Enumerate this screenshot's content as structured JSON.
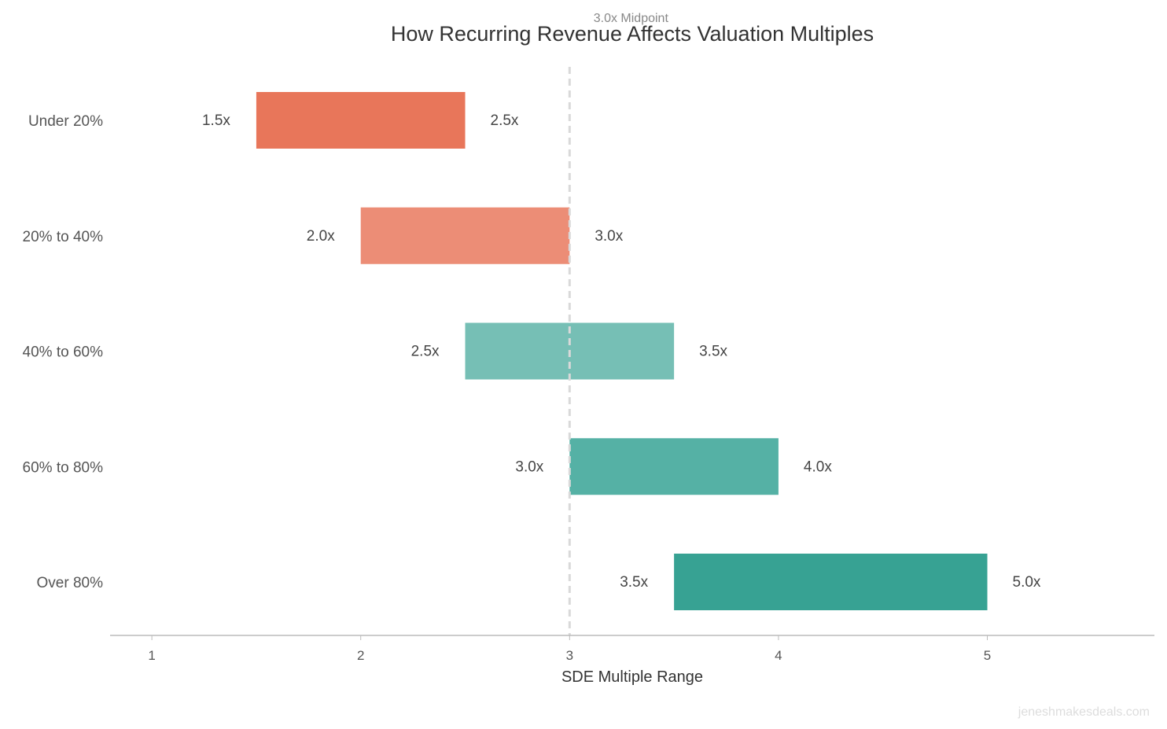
{
  "chart_data": {
    "type": "bar",
    "orientation": "horizontal-range",
    "title": "How Recurring Revenue Affects Valuation Multiples",
    "xlabel": "SDE Multiple Range",
    "ylabel": "",
    "xlim": [
      0.8,
      5.8
    ],
    "xticks": [
      "1",
      "2",
      "3",
      "4",
      "5"
    ],
    "grid": false,
    "categories": [
      "Under 20%",
      "20% to 40%",
      "40% to 60%",
      "60% to 80%",
      "Over 80%"
    ],
    "low": [
      1.5,
      2.0,
      2.5,
      3.0,
      3.5
    ],
    "high": [
      2.5,
      3.0,
      3.5,
      4.0,
      5.0
    ],
    "low_labels": [
      "1.5x",
      "2.0x",
      "2.5x",
      "3.0x",
      "3.5x"
    ],
    "high_labels": [
      "2.5x",
      "3.0x",
      "3.5x",
      "4.0x",
      "5.0x"
    ],
    "colors": [
      "#E8765A",
      "#EC8D76",
      "#76BFB5",
      "#55B1A5",
      "#37A293"
    ],
    "reference_line": {
      "value": 3.0,
      "label": "3.0x Midpoint",
      "style": "dashed",
      "color": "#D9D9D9"
    }
  },
  "watermark": "jeneshmakesdeals.com"
}
